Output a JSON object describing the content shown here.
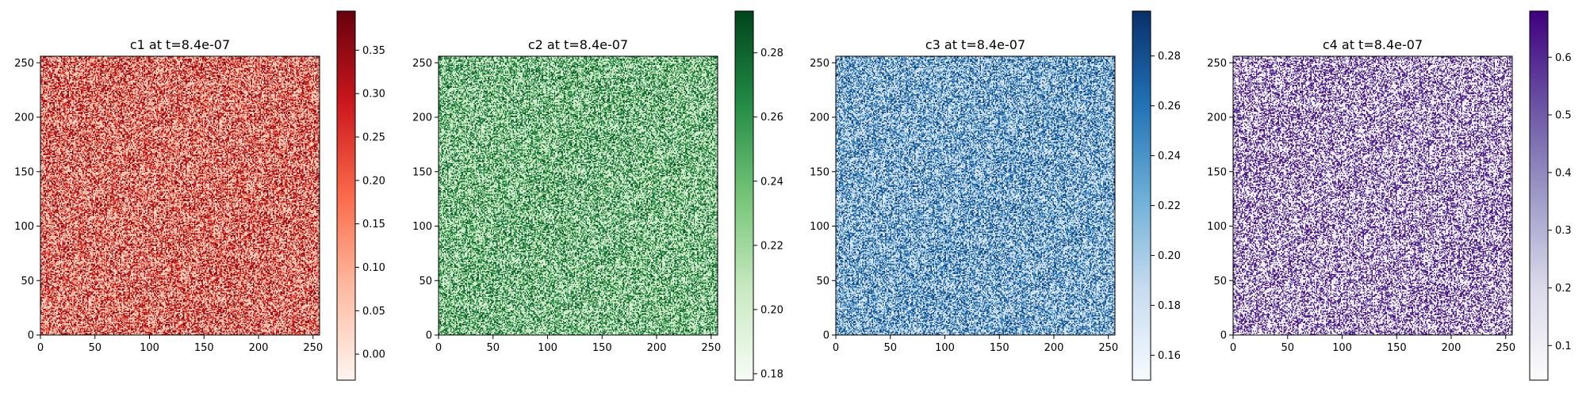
{
  "chart_data": [
    {
      "type": "heatmap",
      "title": "c1 at t=8.4e-07",
      "grid_size": 256,
      "x_ticks": [
        0,
        50,
        100,
        150,
        200,
        250
      ],
      "y_ticks": [
        0,
        50,
        100,
        150,
        200,
        250
      ],
      "xlim": [
        0,
        256
      ],
      "ylim": [
        0,
        256
      ],
      "colormap": "Reds",
      "colormap_colors": [
        "#fff5f0",
        "#fcbba1",
        "#fb6a4a",
        "#cb181d",
        "#67000d"
      ],
      "colorbar_range": [
        -0.03,
        0.395
      ],
      "colorbar_ticks": [
        "0.00",
        "0.05",
        "0.10",
        "0.15",
        "0.20",
        "0.25",
        "0.30",
        "0.35"
      ],
      "grid": false
    },
    {
      "type": "heatmap",
      "title": "c2 at t=8.4e-07",
      "grid_size": 256,
      "x_ticks": [
        0,
        50,
        100,
        150,
        200,
        250
      ],
      "y_ticks": [
        0,
        50,
        100,
        150,
        200,
        250
      ],
      "xlim": [
        0,
        256
      ],
      "ylim": [
        0,
        256
      ],
      "colormap": "Greens",
      "colormap_colors": [
        "#f7fcf5",
        "#c7e9c0",
        "#74c476",
        "#238b45",
        "#00441b"
      ],
      "colorbar_range": [
        0.178,
        0.293
      ],
      "colorbar_ticks": [
        "0.18",
        "0.20",
        "0.22",
        "0.24",
        "0.26",
        "0.28"
      ],
      "grid": false
    },
    {
      "type": "heatmap",
      "title": "c3 at t=8.4e-07",
      "grid_size": 256,
      "x_ticks": [
        0,
        50,
        100,
        150,
        200,
        250
      ],
      "y_ticks": [
        0,
        50,
        100,
        150,
        200,
        250
      ],
      "xlim": [
        0,
        256
      ],
      "ylim": [
        0,
        256
      ],
      "colormap": "Blues",
      "colormap_colors": [
        "#f7fbff",
        "#c6dbef",
        "#6baed6",
        "#2171b5",
        "#08306b"
      ],
      "colorbar_range": [
        0.15,
        0.298
      ],
      "colorbar_ticks": [
        "0.16",
        "0.18",
        "0.20",
        "0.22",
        "0.24",
        "0.26",
        "0.28"
      ],
      "grid": false
    },
    {
      "type": "heatmap",
      "title": "c4 at t=8.4e-07",
      "grid_size": 256,
      "x_ticks": [
        0,
        50,
        100,
        150,
        200,
        250
      ],
      "y_ticks": [
        0,
        50,
        100,
        150,
        200,
        250
      ],
      "xlim": [
        0,
        256
      ],
      "ylim": [
        0,
        256
      ],
      "colormap": "Purples",
      "colormap_colors": [
        "#fcfbfd",
        "#dadaeb",
        "#9e9ac8",
        "#6a51a3",
        "#3f007d"
      ],
      "colorbar_range": [
        0.04,
        0.68
      ],
      "colorbar_ticks": [
        "0.1",
        "0.2",
        "0.3",
        "0.4",
        "0.5",
        "0.6"
      ],
      "grid": false
    }
  ]
}
